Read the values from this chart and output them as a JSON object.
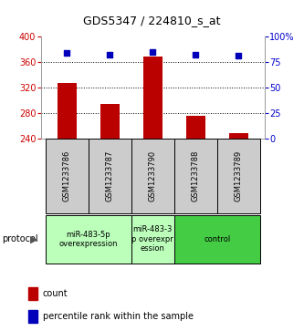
{
  "title": "GDS5347 / 224810_s_at",
  "samples": [
    "GSM1233786",
    "GSM1233787",
    "GSM1233790",
    "GSM1233788",
    "GSM1233789"
  ],
  "counts": [
    327,
    294,
    369,
    276,
    249
  ],
  "percentiles": [
    84,
    82,
    85,
    82,
    81
  ],
  "ymin": 240,
  "ymax": 400,
  "yticks": [
    240,
    280,
    320,
    360,
    400
  ],
  "pct_min": 0,
  "pct_max": 100,
  "pct_ticks": [
    0,
    25,
    50,
    75,
    100
  ],
  "pct_tick_labels": [
    "0",
    "25",
    "50",
    "75",
    "100%"
  ],
  "bar_color": "#bb0000",
  "dot_color": "#0000bb",
  "bar_bottom": 240,
  "protocol_groups": [
    {
      "label": "miR-483-5p\noverexpression",
      "start": 0,
      "end": 1,
      "color": "#bbffbb"
    },
    {
      "label": "miR-483-3\np overexpr\nession",
      "start": 2,
      "end": 2,
      "color": "#bbffbb"
    },
    {
      "label": "control",
      "start": 3,
      "end": 4,
      "color": "#44cc44"
    }
  ],
  "left_label_color": "#cc0000",
  "right_label_color": "#0000cc",
  "tick_fontsize": 7,
  "title_fontsize": 9,
  "sample_fontsize": 6,
  "proto_fontsize": 6,
  "legend_fontsize": 7
}
